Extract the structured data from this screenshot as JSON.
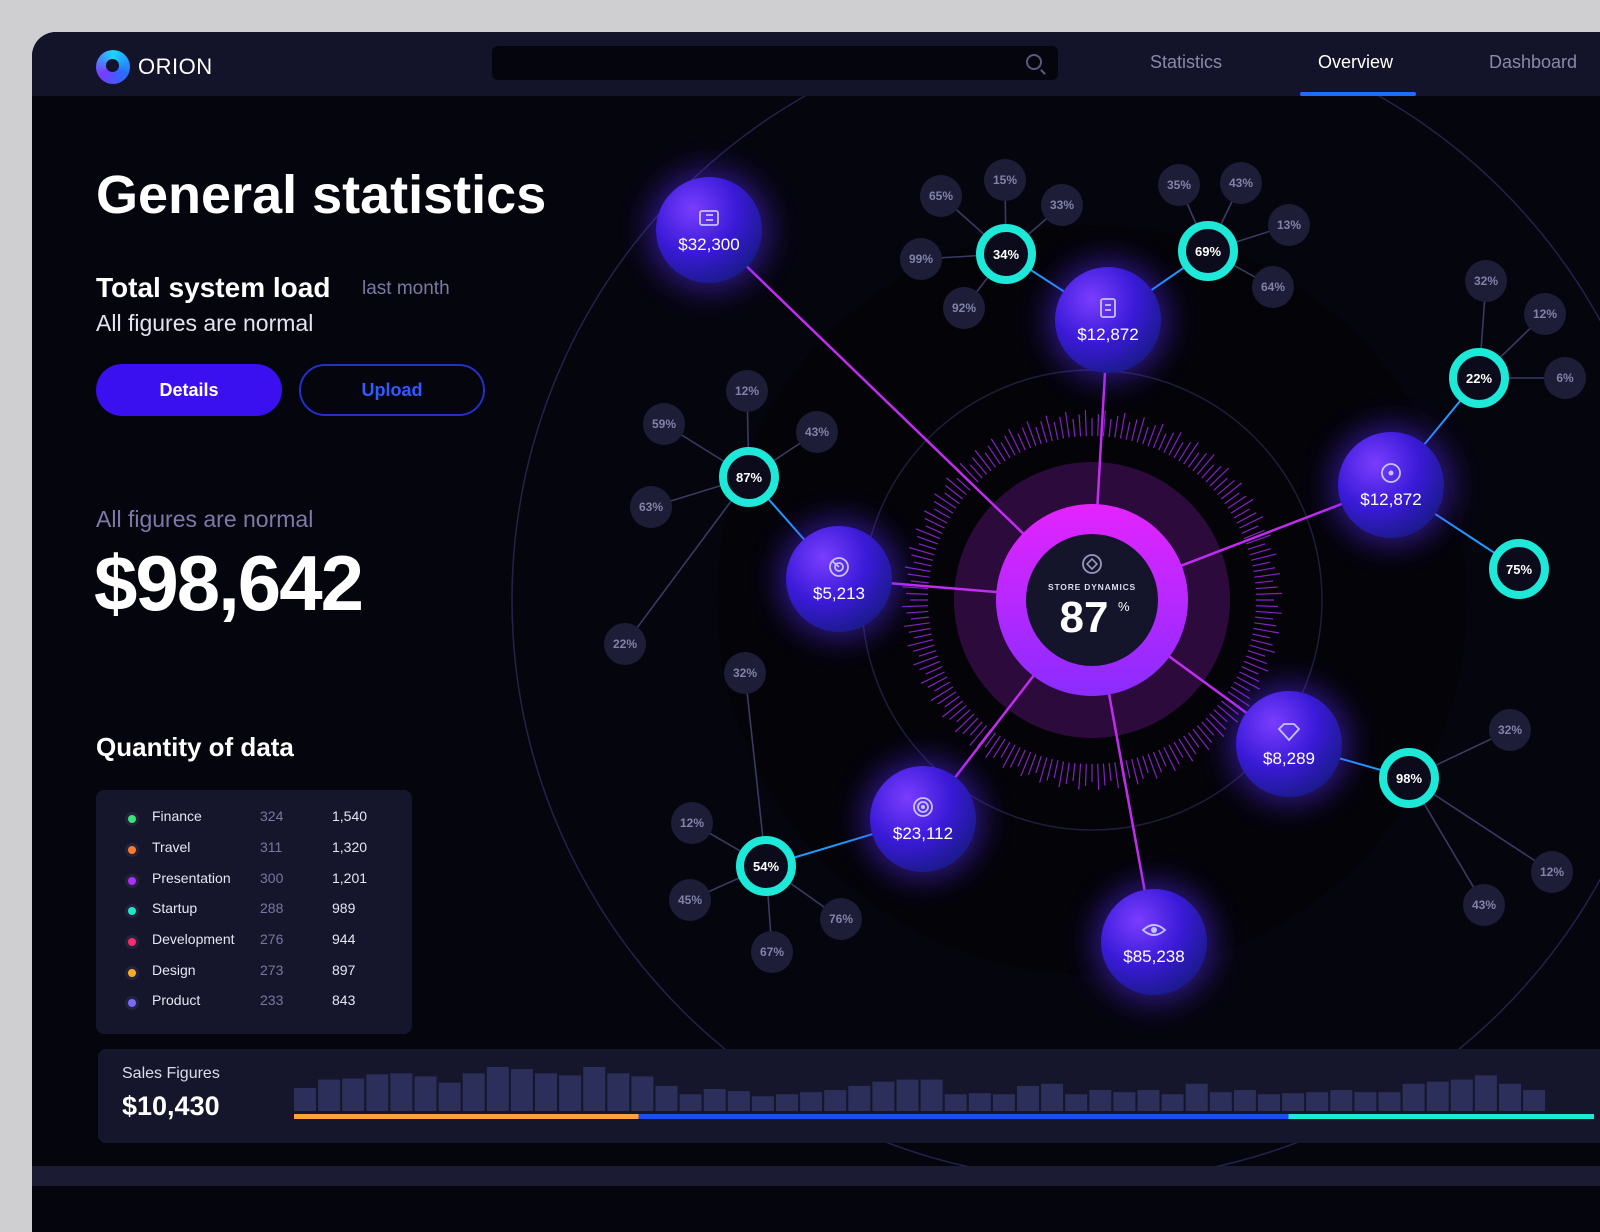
{
  "app": {
    "name": "ORION"
  },
  "search": {
    "placeholder": ""
  },
  "nav": {
    "tabs": [
      {
        "label": "Statistics"
      },
      {
        "label": "Overview",
        "active": true
      },
      {
        "label": "Dashboard"
      }
    ]
  },
  "main": {
    "title": "General statistics",
    "load": {
      "title": "Total system load",
      "period": "last month",
      "status": "All figures are normal"
    },
    "buttons": {
      "details": "Details",
      "upload": "Upload"
    },
    "summary": {
      "label": "All figures are normal",
      "value": "$98,642"
    }
  },
  "quantity": {
    "title": "Quantity of data",
    "rows": [
      {
        "name": "Finance",
        "count": "324",
        "total": "1,540",
        "color": "#3de07a"
      },
      {
        "name": "Travel",
        "count": "311",
        "total": "1,320",
        "color": "#ff7a2a"
      },
      {
        "name": "Presentation",
        "count": "300",
        "total": "1,201",
        "color": "#b02cff"
      },
      {
        "name": "Startup",
        "count": "288",
        "total": "989",
        "color": "#1ee8c8"
      },
      {
        "name": "Development",
        "count": "276",
        "total": "944",
        "color": "#ff2a6a"
      },
      {
        "name": "Design",
        "count": "273",
        "total": "897",
        "color": "#ffaa22"
      },
      {
        "name": "Product",
        "count": "233",
        "total": "843",
        "color": "#7a6bff"
      }
    ]
  },
  "sales": {
    "label": "Sales Figures",
    "value": "$10,430",
    "bars": [
      22,
      30,
      31,
      35,
      36,
      33,
      27,
      36,
      42,
      40,
      36,
      34,
      42,
      36,
      33,
      24,
      16,
      21,
      19,
      14,
      16,
      18,
      20,
      24,
      28,
      30,
      30,
      16,
      17,
      16,
      24,
      26,
      16,
      20,
      18,
      20,
      16,
      26,
      18,
      20,
      16,
      17,
      18,
      20,
      18,
      18,
      26,
      28,
      30,
      34,
      26,
      20
    ],
    "progress": [
      {
        "share": 0.265,
        "color": "#ffa13a"
      },
      {
        "share": 0.5,
        "color": "#1f4cf0"
      },
      {
        "share": 0.235,
        "color": "#1ee8d8"
      }
    ]
  },
  "hub": {
    "label": "STORE DYNAMICS",
    "value": "87",
    "unit": "%"
  },
  "nodes": [
    {
      "value": "$32,300",
      "icon": "ticket-icon"
    },
    {
      "value": "$12,872",
      "icon": "document-icon"
    },
    {
      "value": "$12,872",
      "icon": "target-icon"
    },
    {
      "value": "$5,213",
      "icon": "radar-icon"
    },
    {
      "value": "$23,112",
      "icon": "bullseye-icon"
    },
    {
      "value": "$8,289",
      "icon": "diamond-icon"
    },
    {
      "value": "$85,238",
      "icon": "eye-icon"
    }
  ],
  "rings": [
    {
      "value": "34",
      "leaves": [
        "65",
        "15",
        "33",
        "99",
        "92"
      ]
    },
    {
      "value": "69",
      "leaves": [
        "35",
        "43",
        "13",
        "64"
      ]
    },
    {
      "value": "87",
      "leaves": [
        "12",
        "59",
        "43",
        "63",
        "22"
      ]
    },
    {
      "value": "22",
      "leaves": [
        "32",
        "12",
        "6"
      ]
    },
    {
      "value": "75",
      "leaves": []
    },
    {
      "value": "98",
      "leaves": [
        "32",
        "12",
        "43"
      ]
    },
    {
      "value": "54",
      "leaves": [
        "32",
        "12",
        "45",
        "76",
        "67"
      ]
    }
  ],
  "colors": {
    "accent": "#3a10f0",
    "teal": "#1ee8d8",
    "magenta": "#e02cff",
    "background": "#05050e"
  }
}
